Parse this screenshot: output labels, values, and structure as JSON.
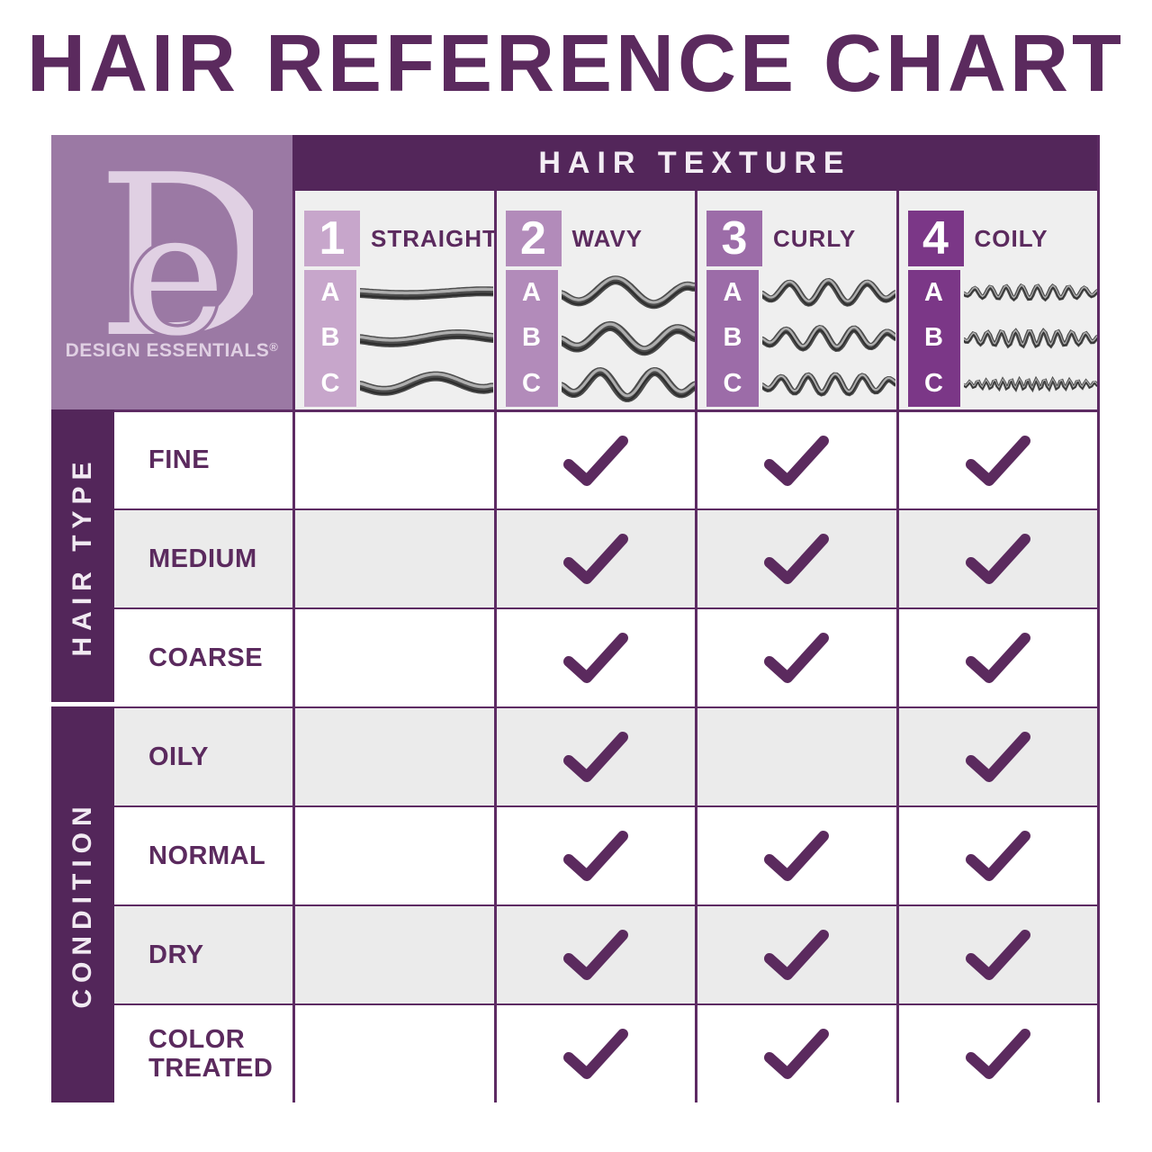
{
  "brand": {
    "monogram_d": "D",
    "monogram_e": "e",
    "name": "DESIGN ESSENTIALS",
    "registered_mark": "®"
  },
  "colors": {
    "accent_purple": "#5b2a5e",
    "band_purple": "#53265a",
    "logo_background": "#9b79a4",
    "logo_foreground": "#e0d0e3",
    "header_gray": "#efefef",
    "alt_row_gray": "#ebebeb"
  },
  "chart_data": {
    "type": "table",
    "title": "HAIR REFERENCE CHART",
    "column_group_label": "HAIR TEXTURE",
    "columns": [
      {
        "number": "1",
        "label": "STRAIGHT",
        "subtypes": [
          "A",
          "B",
          "C"
        ],
        "badge_color": "#c7a6cb",
        "strand_style": "straight"
      },
      {
        "number": "2",
        "label": "WAVY",
        "subtypes": [
          "A",
          "B",
          "C"
        ],
        "badge_color": "#b28bba",
        "strand_style": "wavy"
      },
      {
        "number": "3",
        "label": "CURLY",
        "subtypes": [
          "A",
          "B",
          "C"
        ],
        "badge_color": "#9c6ca8",
        "strand_style": "curly"
      },
      {
        "number": "4",
        "label": "COILY",
        "subtypes": [
          "A",
          "B",
          "C"
        ],
        "badge_color": "#7b3787",
        "strand_style": "coily"
      }
    ],
    "row_groups": [
      {
        "label": "HAIR TYPE",
        "rows": [
          {
            "label": "FINE",
            "checks": [
              false,
              true,
              true,
              true
            ]
          },
          {
            "label": "MEDIUM",
            "checks": [
              false,
              true,
              true,
              true
            ]
          },
          {
            "label": "COARSE",
            "checks": [
              false,
              true,
              true,
              true
            ]
          }
        ]
      },
      {
        "label": "CONDITION",
        "rows": [
          {
            "label": "OILY",
            "checks": [
              false,
              true,
              false,
              true
            ]
          },
          {
            "label": "NORMAL",
            "checks": [
              false,
              true,
              true,
              true
            ]
          },
          {
            "label": "DRY",
            "checks": [
              false,
              true,
              true,
              true
            ]
          },
          {
            "label": "COLOR TREATED",
            "checks": [
              false,
              true,
              true,
              true
            ]
          }
        ]
      }
    ]
  }
}
